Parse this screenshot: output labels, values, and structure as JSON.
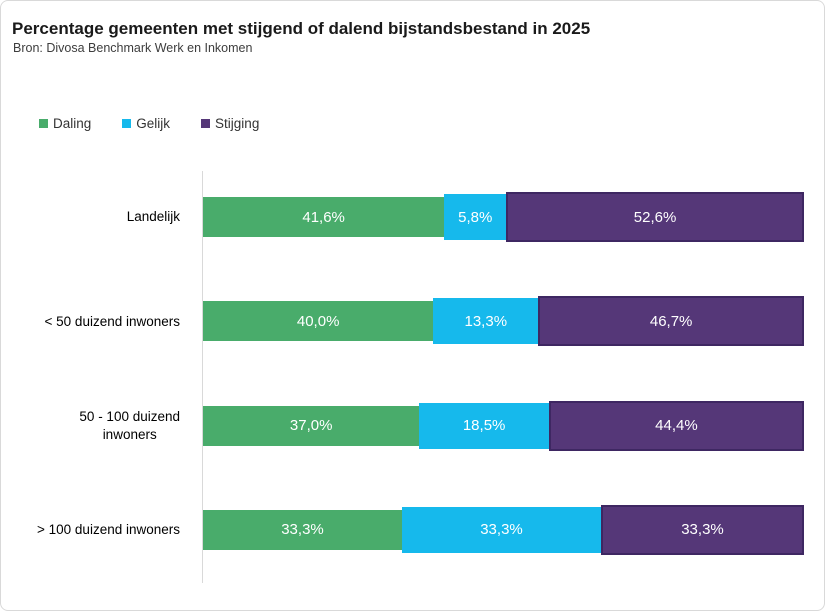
{
  "header": {
    "title": "Percentage gemeenten met stijgend of dalend bijstandsbestand in 2025",
    "source": "Bron: Divosa Benchmark Werk en Inkomen"
  },
  "colors": {
    "daling": "#49AC6B",
    "gelijk": "#16B9EC",
    "stijging": "#553778",
    "stijging_border": "#3E2762",
    "axis_line": "#D9D9D9",
    "card_border": "#D9D9D9",
    "value_label_text": "#FFFFFF"
  },
  "chart_data": {
    "type": "bar",
    "orientation": "horizontal",
    "stacked": true,
    "title": "Percentage gemeenten met stijgend of dalend bijstandsbestand in 2025",
    "subtitle": "Bron: Divosa Benchmark Werk en Inkomen",
    "xlabel": "",
    "ylabel": "",
    "xlim": [
      0,
      100
    ],
    "grid": false,
    "legend_position": "top-left",
    "categories": [
      "Landelijk",
      "< 50 duizend inwoners",
      "50 - 100 duizend\ninwoners",
      "> 100 duizend inwoners"
    ],
    "series": [
      {
        "name": "Daling",
        "color": "#49AC6B",
        "values": [
          41.6,
          40.0,
          37.0,
          33.3
        ],
        "labels": [
          "41,6%",
          "40,0%",
          "37,0%",
          "33,3%"
        ]
      },
      {
        "name": "Gelijk",
        "color": "#16B9EC",
        "values": [
          5.8,
          13.3,
          18.5,
          33.3
        ],
        "labels": [
          "5,8%",
          "13,3%",
          "18,5%",
          "33,3%"
        ]
      },
      {
        "name": "Stijging",
        "color": "#553778",
        "border_color": "#3E2762",
        "values": [
          52.6,
          46.7,
          44.4,
          33.3
        ],
        "labels": [
          "52,6%",
          "46,7%",
          "44,4%",
          "33,3%"
        ]
      }
    ]
  }
}
